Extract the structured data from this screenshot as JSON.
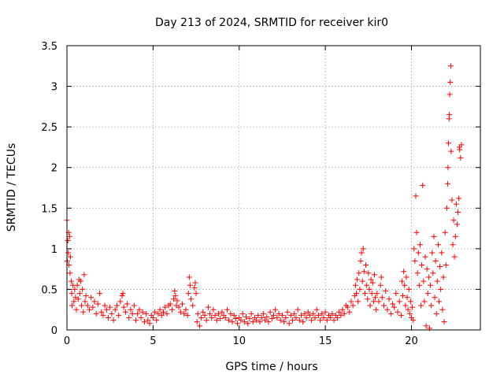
{
  "chart_data": {
    "type": "scatter",
    "title": "Day 213 of 2024, SRMTID for receiver kir0",
    "xlabel": "GPS time / hours",
    "ylabel": "SRMTID / TECUs",
    "xlim": [
      0,
      24
    ],
    "ylim": [
      0,
      3.5
    ],
    "xticks": [
      0,
      5,
      10,
      15,
      20
    ],
    "xtick_labels": [
      "0",
      "5",
      "10",
      "15",
      "20"
    ],
    "yticks": [
      0,
      0.5,
      1,
      1.5,
      2,
      2.5,
      3,
      3.5
    ],
    "ytick_labels": [
      "0",
      "0.5",
      "1",
      "1.5",
      "2",
      "2.5",
      "3",
      "3.5"
    ],
    "grid": true,
    "marker": "plus",
    "color": "#ff0000",
    "series": [
      {
        "name": "SRMTID",
        "points": [
          [
            0.0,
            1.35
          ],
          [
            0.02,
            0.85
          ],
          [
            0.05,
            1.1
          ],
          [
            0.08,
            0.95
          ],
          [
            0.1,
            1.2
          ],
          [
            0.12,
            0.8
          ],
          [
            0.15,
            1.15
          ],
          [
            0.18,
            0.7
          ],
          [
            0.2,
            0.9
          ],
          [
            0.25,
            0.6
          ],
          [
            0.28,
            0.45
          ],
          [
            0.3,
            0.3
          ],
          [
            0.35,
            0.55
          ],
          [
            0.4,
            0.35
          ],
          [
            0.45,
            0.5
          ],
          [
            0.5,
            0.4
          ],
          [
            0.55,
            0.25
          ],
          [
            0.6,
            0.55
          ],
          [
            0.65,
            0.38
          ],
          [
            0.7,
            0.62
          ],
          [
            0.75,
            0.45
          ],
          [
            0.8,
            0.6
          ],
          [
            0.85,
            0.3
          ],
          [
            0.9,
            0.5
          ],
          [
            0.95,
            0.22
          ],
          [
            1.0,
            0.68
          ],
          [
            1.05,
            0.35
          ],
          [
            1.1,
            0.42
          ],
          [
            1.2,
            0.3
          ],
          [
            1.3,
            0.25
          ],
          [
            1.4,
            0.4
          ],
          [
            1.5,
            0.28
          ],
          [
            1.6,
            0.35
          ],
          [
            1.7,
            0.2
          ],
          [
            1.8,
            0.32
          ],
          [
            1.9,
            0.45
          ],
          [
            2.0,
            0.22
          ],
          [
            2.1,
            0.18
          ],
          [
            2.2,
            0.3
          ],
          [
            2.3,
            0.25
          ],
          [
            2.4,
            0.15
          ],
          [
            2.5,
            0.28
          ],
          [
            2.6,
            0.2
          ],
          [
            2.7,
            0.12
          ],
          [
            2.8,
            0.25
          ],
          [
            2.9,
            0.3
          ],
          [
            3.0,
            0.18
          ],
          [
            3.1,
            0.35
          ],
          [
            3.2,
            0.42
          ],
          [
            3.25,
            0.45
          ],
          [
            3.3,
            0.28
          ],
          [
            3.4,
            0.22
          ],
          [
            3.5,
            0.32
          ],
          [
            3.6,
            0.15
          ],
          [
            3.7,
            0.25
          ],
          [
            3.8,
            0.2
          ],
          [
            3.9,
            0.3
          ],
          [
            4.0,
            0.12
          ],
          [
            4.1,
            0.2
          ],
          [
            4.2,
            0.25
          ],
          [
            4.3,
            0.15
          ],
          [
            4.4,
            0.22
          ],
          [
            4.5,
            0.1
          ],
          [
            4.6,
            0.2
          ],
          [
            4.7,
            0.12
          ],
          [
            4.8,
            0.08
          ],
          [
            4.9,
            0.18
          ],
          [
            5.0,
            0.15
          ],
          [
            5.1,
            0.22
          ],
          [
            5.2,
            0.12
          ],
          [
            5.3,
            0.2
          ],
          [
            5.4,
            0.25
          ],
          [
            5.5,
            0.18
          ],
          [
            5.6,
            0.22
          ],
          [
            5.7,
            0.28
          ],
          [
            5.8,
            0.2
          ],
          [
            5.9,
            0.3
          ],
          [
            6.0,
            0.32
          ],
          [
            6.1,
            0.25
          ],
          [
            6.2,
            0.38
          ],
          [
            6.25,
            0.48
          ],
          [
            6.3,
            0.42
          ],
          [
            6.35,
            0.3
          ],
          [
            6.4,
            0.36
          ],
          [
            6.5,
            0.28
          ],
          [
            6.6,
            0.22
          ],
          [
            6.7,
            0.32
          ],
          [
            6.8,
            0.2
          ],
          [
            6.9,
            0.25
          ],
          [
            7.0,
            0.18
          ],
          [
            7.05,
            0.45
          ],
          [
            7.1,
            0.65
          ],
          [
            7.15,
            0.55
          ],
          [
            7.2,
            0.38
          ],
          [
            7.3,
            0.3
          ],
          [
            7.4,
            0.52
          ],
          [
            7.45,
            0.58
          ],
          [
            7.5,
            0.45
          ],
          [
            7.55,
            0.1
          ],
          [
            7.6,
            0.2
          ],
          [
            7.7,
            0.05
          ],
          [
            7.8,
            0.15
          ],
          [
            7.9,
            0.22
          ],
          [
            8.0,
            0.18
          ],
          [
            8.1,
            0.12
          ],
          [
            8.2,
            0.28
          ],
          [
            8.3,
            0.2
          ],
          [
            8.4,
            0.15
          ],
          [
            8.5,
            0.25
          ],
          [
            8.6,
            0.18
          ],
          [
            8.7,
            0.12
          ],
          [
            8.8,
            0.2
          ],
          [
            8.9,
            0.14
          ],
          [
            9.0,
            0.22
          ],
          [
            9.1,
            0.18
          ],
          [
            9.2,
            0.15
          ],
          [
            9.3,
            0.25
          ],
          [
            9.4,
            0.12
          ],
          [
            9.5,
            0.2
          ],
          [
            9.6,
            0.1
          ],
          [
            9.7,
            0.18
          ],
          [
            9.8,
            0.14
          ],
          [
            9.9,
            0.08
          ],
          [
            10.0,
            0.15
          ],
          [
            10.1,
            0.12
          ],
          [
            10.2,
            0.2
          ],
          [
            10.3,
            0.1
          ],
          [
            10.4,
            0.16
          ],
          [
            10.5,
            0.08
          ],
          [
            10.6,
            0.14
          ],
          [
            10.7,
            0.2
          ],
          [
            10.8,
            0.1
          ],
          [
            10.9,
            0.15
          ],
          [
            11.0,
            0.12
          ],
          [
            11.1,
            0.18
          ],
          [
            11.2,
            0.1
          ],
          [
            11.3,
            0.15
          ],
          [
            11.4,
            0.2
          ],
          [
            11.5,
            0.12
          ],
          [
            11.6,
            0.16
          ],
          [
            11.7,
            0.1
          ],
          [
            11.8,
            0.22
          ],
          [
            11.9,
            0.14
          ],
          [
            12.0,
            0.18
          ],
          [
            12.1,
            0.25
          ],
          [
            12.2,
            0.15
          ],
          [
            12.3,
            0.2
          ],
          [
            12.4,
            0.12
          ],
          [
            12.5,
            0.18
          ],
          [
            12.6,
            0.1
          ],
          [
            12.7,
            0.15
          ],
          [
            12.8,
            0.22
          ],
          [
            12.9,
            0.08
          ],
          [
            13.0,
            0.18
          ],
          [
            13.1,
            0.12
          ],
          [
            13.2,
            0.2
          ],
          [
            13.3,
            0.15
          ],
          [
            13.4,
            0.25
          ],
          [
            13.5,
            0.12
          ],
          [
            13.6,
            0.18
          ],
          [
            13.7,
            0.1
          ],
          [
            13.8,
            0.2
          ],
          [
            13.9,
            0.15
          ],
          [
            14.0,
            0.22
          ],
          [
            14.1,
            0.18
          ],
          [
            14.2,
            0.12
          ],
          [
            14.3,
            0.2
          ],
          [
            14.4,
            0.15
          ],
          [
            14.5,
            0.25
          ],
          [
            14.6,
            0.18
          ],
          [
            14.7,
            0.12
          ],
          [
            14.8,
            0.2
          ],
          [
            14.9,
            0.15
          ],
          [
            15.0,
            0.22
          ],
          [
            15.1,
            0.12
          ],
          [
            15.2,
            0.18
          ],
          [
            15.3,
            0.15
          ],
          [
            15.4,
            0.2
          ],
          [
            15.5,
            0.12
          ],
          [
            15.6,
            0.18
          ],
          [
            15.7,
            0.15
          ],
          [
            15.8,
            0.22
          ],
          [
            15.9,
            0.18
          ],
          [
            16.0,
            0.25
          ],
          [
            16.1,
            0.2
          ],
          [
            16.2,
            0.3
          ],
          [
            16.3,
            0.28
          ],
          [
            16.4,
            0.22
          ],
          [
            16.5,
            0.35
          ],
          [
            16.6,
            0.3
          ],
          [
            16.7,
            0.42
          ],
          [
            16.75,
            0.55
          ],
          [
            16.8,
            0.45
          ],
          [
            16.85,
            0.62
          ],
          [
            16.9,
            0.35
          ],
          [
            16.95,
            0.7
          ],
          [
            17.0,
            0.5
          ],
          [
            17.05,
            0.85
          ],
          [
            17.1,
            0.95
          ],
          [
            17.15,
            0.6
          ],
          [
            17.2,
            1.0
          ],
          [
            17.25,
            0.72
          ],
          [
            17.3,
            0.45
          ],
          [
            17.35,
            0.8
          ],
          [
            17.4,
            0.55
          ],
          [
            17.45,
            0.38
          ],
          [
            17.5,
            0.7
          ],
          [
            17.55,
            0.5
          ],
          [
            17.6,
            0.3
          ],
          [
            17.65,
            0.62
          ],
          [
            17.7,
            0.45
          ],
          [
            17.75,
            0.58
          ],
          [
            17.8,
            0.35
          ],
          [
            17.85,
            0.68
          ],
          [
            17.9,
            0.4
          ],
          [
            17.95,
            0.25
          ],
          [
            18.0,
            0.45
          ],
          [
            18.1,
            0.35
          ],
          [
            18.2,
            0.55
          ],
          [
            18.25,
            0.65
          ],
          [
            18.3,
            0.4
          ],
          [
            18.4,
            0.3
          ],
          [
            18.5,
            0.48
          ],
          [
            18.6,
            0.25
          ],
          [
            18.7,
            0.38
          ],
          [
            18.8,
            0.2
          ],
          [
            18.9,
            0.32
          ],
          [
            19.0,
            0.28
          ],
          [
            19.1,
            0.45
          ],
          [
            19.2,
            0.22
          ],
          [
            19.3,
            0.35
          ],
          [
            19.4,
            0.18
          ],
          [
            19.45,
            0.6
          ],
          [
            19.5,
            0.42
          ],
          [
            19.55,
            0.72
          ],
          [
            19.6,
            0.55
          ],
          [
            19.65,
            0.3
          ],
          [
            19.7,
            0.65
          ],
          [
            19.75,
            0.4
          ],
          [
            19.8,
            0.25
          ],
          [
            19.85,
            0.5
          ],
          [
            19.9,
            0.2
          ],
          [
            19.95,
            0.35
          ],
          [
            20.0,
            0.15
          ],
          [
            20.05,
            0.28
          ],
          [
            20.1,
            0.12
          ],
          [
            20.15,
            1.0
          ],
          [
            20.2,
            0.85
          ],
          [
            20.25,
            1.65
          ],
          [
            20.3,
            1.2
          ],
          [
            20.35,
            0.7
          ],
          [
            20.4,
            0.95
          ],
          [
            20.45,
            0.55
          ],
          [
            20.5,
            1.05
          ],
          [
            20.55,
            0.3
          ],
          [
            20.6,
            0.8
          ],
          [
            20.65,
            1.78
          ],
          [
            20.7,
            0.6
          ],
          [
            20.75,
            0.35
          ],
          [
            20.8,
            0.9
          ],
          [
            20.85,
            0.05
          ],
          [
            20.9,
            0.75
          ],
          [
            20.95,
            0.45
          ],
          [
            21.0,
            0.65
          ],
          [
            21.05,
            0.02
          ],
          [
            21.1,
            0.55
          ],
          [
            21.15,
            0.3
          ],
          [
            21.2,
            0.95
          ],
          [
            21.25,
            0.7
          ],
          [
            21.3,
            1.15
          ],
          [
            21.35,
            0.4
          ],
          [
            21.4,
            0.85
          ],
          [
            21.45,
            0.2
          ],
          [
            21.5,
            0.6
          ],
          [
            21.55,
            1.05
          ],
          [
            21.6,
            0.35
          ],
          [
            21.65,
            0.78
          ],
          [
            21.7,
            0.5
          ],
          [
            21.75,
            0.95
          ],
          [
            21.8,
            0.25
          ],
          [
            21.85,
            0.65
          ],
          [
            21.9,
            0.1
          ],
          [
            21.95,
            1.2
          ],
          [
            22.0,
            0.8
          ],
          [
            22.05,
            1.5
          ],
          [
            22.1,
            1.8
          ],
          [
            22.12,
            2.0
          ],
          [
            22.15,
            2.3
          ],
          [
            22.18,
            2.6
          ],
          [
            22.2,
            2.65
          ],
          [
            22.22,
            2.9
          ],
          [
            22.25,
            3.05
          ],
          [
            22.28,
            3.25
          ],
          [
            22.3,
            2.2
          ],
          [
            22.35,
            1.6
          ],
          [
            22.4,
            1.05
          ],
          [
            22.45,
            1.35
          ],
          [
            22.5,
            0.9
          ],
          [
            22.55,
            1.15
          ],
          [
            22.6,
            1.55
          ],
          [
            22.65,
            1.3
          ],
          [
            22.7,
            1.45
          ],
          [
            22.75,
            1.62
          ],
          [
            22.78,
            2.25
          ],
          [
            22.8,
            2.22
          ],
          [
            22.85,
            2.12
          ],
          [
            22.9,
            2.28
          ]
        ]
      }
    ]
  }
}
